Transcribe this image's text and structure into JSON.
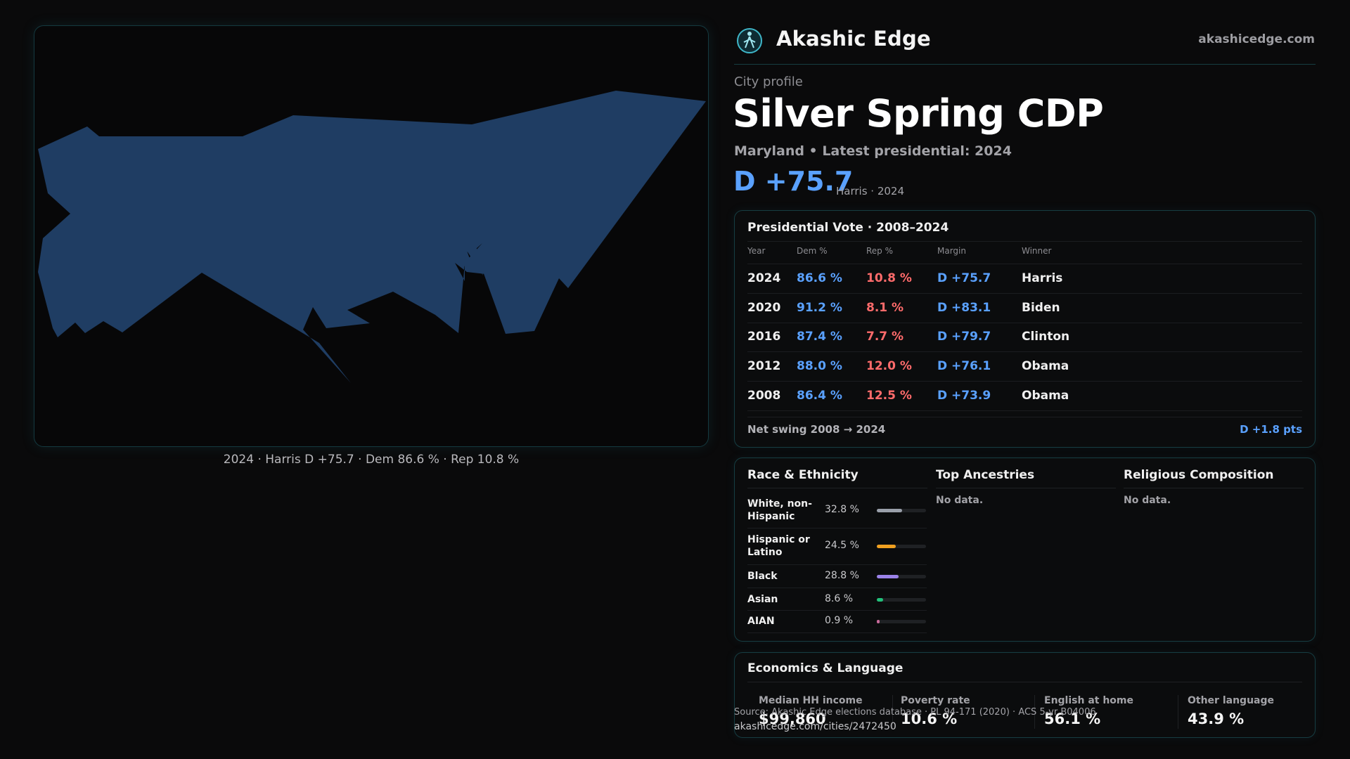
{
  "brand": {
    "name": "Akashic Edge",
    "url": "akashicedge.com",
    "logo_icon": "hiker-globe-icon"
  },
  "map": {
    "caption": "2024 · Harris D +75.7 · Dem 86.6 % · Rep 10.8 %",
    "fill_color": "#1f3d63"
  },
  "profile": {
    "eyebrow": "City profile",
    "title": "Silver Spring CDP",
    "subtitle": "Maryland • Latest presidential: 2024",
    "margin": "D +75.7",
    "margin_note": "Harris · 2024"
  },
  "vote": {
    "title": "Presidential Vote · 2008–2024",
    "headers": {
      "year": "Year",
      "dem": "Dem %",
      "rep": "Rep %",
      "margin": "Margin",
      "winner": "Winner"
    },
    "rows": [
      {
        "year": "2024",
        "dem": "86.6 %",
        "rep": "10.8 %",
        "margin": "D +75.7",
        "winner": "Harris"
      },
      {
        "year": "2020",
        "dem": "91.2 %",
        "rep": "8.1 %",
        "margin": "D +83.1",
        "winner": "Biden"
      },
      {
        "year": "2016",
        "dem": "87.4 %",
        "rep": "7.7 %",
        "margin": "D +79.7",
        "winner": "Clinton"
      },
      {
        "year": "2012",
        "dem": "88.0 %",
        "rep": "12.0 %",
        "margin": "D +76.1",
        "winner": "Obama"
      },
      {
        "year": "2008",
        "dem": "86.4 %",
        "rep": "12.5 %",
        "margin": "D +73.9",
        "winner": "Obama"
      }
    ],
    "swing_label": "Net swing 2008 → 2024",
    "swing_value": "D +1.8 pts"
  },
  "race": {
    "title": "Race & Ethnicity",
    "rows": [
      {
        "label": "White, non-Hispanic",
        "pct": "32.8 %",
        "value": 32.8,
        "color": "#9aa0aa"
      },
      {
        "label": "Hispanic or Latino",
        "pct": "24.5 %",
        "value": 24.5,
        "color": "#f0a020"
      },
      {
        "label": "Black",
        "pct": "28.8 %",
        "value": 28.8,
        "color": "#9b82e8"
      },
      {
        "label": "Asian",
        "pct": "8.6 %",
        "value": 8.6,
        "color": "#22c07a"
      },
      {
        "label": "AIAN",
        "pct": "0.9 %",
        "value": 0.9,
        "color": "#c96a9a"
      }
    ]
  },
  "ancestries": {
    "title": "Top Ancestries",
    "empty": "No data."
  },
  "religion": {
    "title": "Religious Composition",
    "empty": "No data."
  },
  "economics": {
    "title": "Economics & Language",
    "stats": [
      {
        "label": "Median HH income",
        "value": "$99,860"
      },
      {
        "label": "Poverty rate",
        "value": "10.6 %"
      },
      {
        "label": "English at home",
        "value": "56.1 %"
      },
      {
        "label": "Other language",
        "value": "43.9 %"
      }
    ]
  },
  "source": {
    "text": "Source: Akashic Edge elections database · PL 94-171 (2020) · ACS 5-yr B04006",
    "url": "akashicedge.com/cities/2472450"
  }
}
